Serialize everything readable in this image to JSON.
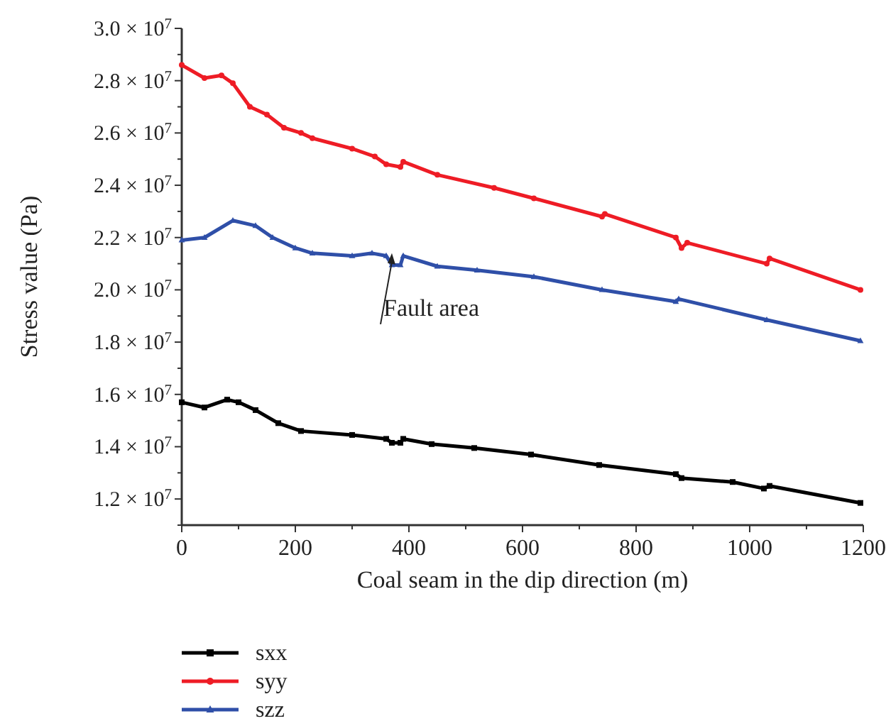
{
  "chart_data": {
    "type": "line",
    "xlabel": "Coal seam in the dip direction (m)",
    "ylabel": "Stress value (Pa)",
    "xlim": [
      0,
      1200
    ],
    "ylim": [
      11000000,
      30000000
    ],
    "xticks": [
      0,
      {
        "value": 100,
        "label": null
      },
      200,
      {
        "value": 300,
        "label": null
      },
      400,
      {
        "value": 500,
        "label": null
      },
      600,
      {
        "value": 700,
        "label": null
      },
      800,
      {
        "value": 900,
        "label": null
      },
      1000,
      {
        "value": 1100,
        "label": null
      },
      1200
    ],
    "yticks": [
      {
        "value": 11000000,
        "label": null
      },
      {
        "value": 12000000,
        "label": "1.2 × 10$^{7}$"
      },
      {
        "value": 13000000,
        "label": null
      },
      {
        "value": 14000000,
        "label": "1.4 × 10$^{7}$"
      },
      {
        "value": 15000000,
        "label": null
      },
      {
        "value": 16000000,
        "label": "1.6 × 10$^{7}$"
      },
      {
        "value": 17000000,
        "label": null
      },
      {
        "value": 18000000,
        "label": "1.8 × 10$^{7}$"
      },
      {
        "value": 19000000,
        "label": null
      },
      {
        "value": 20000000,
        "label": "2.0 × 10$^{7}$"
      },
      {
        "value": 21000000,
        "label": null
      },
      {
        "value": 22000000,
        "label": "2.2 × 10$^{7}$"
      },
      {
        "value": 23000000,
        "label": null
      },
      {
        "value": 24000000,
        "label": "2.4 × 10$^{7}$"
      },
      {
        "value": 25000000,
        "label": null
      },
      {
        "value": 26000000,
        "label": "2.6 × 10$^{7}$"
      },
      {
        "value": 27000000,
        "label": null
      },
      {
        "value": 28000000,
        "label": "2.8 × 10$^{7}$"
      },
      {
        "value": 29000000,
        "label": null
      },
      {
        "value": 30000000,
        "label": "3.0 × 10$^{7}$"
      }
    ],
    "grid": false,
    "legend": "bottom left",
    "line_style": "solid",
    "annotations": [
      {
        "text": "Fault area",
        "x": 370,
        "y": 21400000
      }
    ],
    "series": [
      {
        "name": "sxx",
        "color": "#000000",
        "marker": "square",
        "x": [
          0,
          40,
          80,
          100,
          130,
          170,
          210,
          300,
          360,
          370,
          385,
          390,
          440,
          515,
          615,
          735,
          870,
          880,
          970,
          1025,
          1035,
          1195
        ],
        "values": [
          15700000,
          15500000,
          15800000,
          15700000,
          15400000,
          14900000,
          14600000,
          14450000,
          14300000,
          14150000,
          14150000,
          14300000,
          14100000,
          13950000,
          13700000,
          13300000,
          12950000,
          12800000,
          12650000,
          12400000,
          12500000,
          11850000
        ]
      },
      {
        "name": "syy",
        "color": "#ee1c25",
        "marker": "circle",
        "x": [
          0,
          40,
          70,
          90,
          120,
          150,
          180,
          210,
          230,
          300,
          340,
          360,
          385,
          390,
          450,
          550,
          620,
          740,
          745,
          870,
          880,
          890,
          1030,
          1035,
          1195
        ],
        "values": [
          28600000,
          28100000,
          28200000,
          27900000,
          27000000,
          26700000,
          26200000,
          26000000,
          25800000,
          25400000,
          25100000,
          24800000,
          24700000,
          24900000,
          24400000,
          23900000,
          23500000,
          22800000,
          22900000,
          22000000,
          21600000,
          21800000,
          21000000,
          21200000,
          20000000
        ]
      },
      {
        "name": "szz",
        "color": "#2f4fa8",
        "marker": "triangle",
        "x": [
          0,
          40,
          90,
          130,
          160,
          200,
          230,
          300,
          335,
          360,
          370,
          385,
          390,
          450,
          520,
          620,
          740,
          870,
          875,
          1030,
          1195
        ],
        "values": [
          21900000,
          22000000,
          22650000,
          22450000,
          22000000,
          21600000,
          21400000,
          21300000,
          21400000,
          21300000,
          20950000,
          20950000,
          21300000,
          20900000,
          20750000,
          20500000,
          20000000,
          19550000,
          19650000,
          18850000,
          18050000
        ]
      }
    ]
  }
}
